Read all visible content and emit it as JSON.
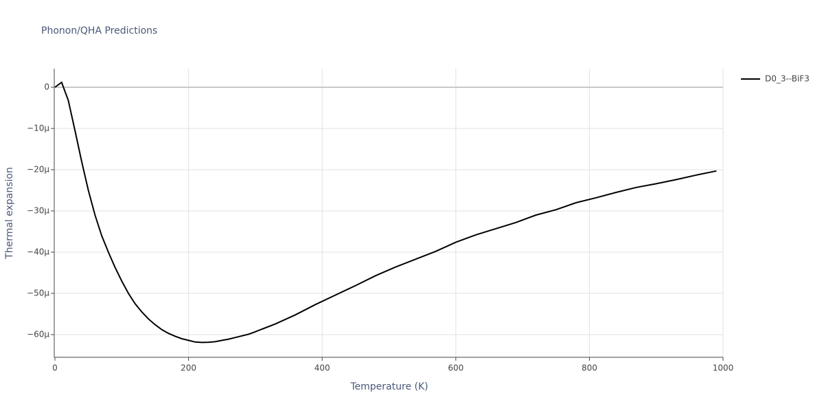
{
  "chart_data": {
    "type": "line",
    "title": "Phonon/QHA Predictions",
    "x_label": "Temperature (K)",
    "y_label": "Thermal expansion",
    "x": [
      0,
      10,
      20,
      30,
      40,
      50,
      60,
      70,
      80,
      90,
      100,
      110,
      120,
      130,
      140,
      150,
      160,
      170,
      180,
      190,
      200,
      210,
      220,
      230,
      240,
      250,
      260,
      270,
      280,
      290,
      300,
      330,
      360,
      390,
      420,
      450,
      480,
      510,
      540,
      570,
      600,
      630,
      660,
      690,
      720,
      750,
      780,
      810,
      840,
      870,
      900,
      930,
      960,
      990
    ],
    "series": [
      {
        "name": "D0_3--BiF3",
        "color": "#000000",
        "values": [
          0,
          1.2e-06,
          -3.2e-06,
          -1.05e-05,
          -1.8e-05,
          -2.5e-05,
          -3.1e-05,
          -3.6e-05,
          -4e-05,
          -4.37e-05,
          -4.7e-05,
          -5e-05,
          -5.25e-05,
          -5.45e-05,
          -5.62e-05,
          -5.76e-05,
          -5.88e-05,
          -5.97e-05,
          -6.04e-05,
          -6.1e-05,
          -6.14e-05,
          -6.18e-05,
          -6.19e-05,
          -6.185e-05,
          -6.17e-05,
          -6.14e-05,
          -6.11e-05,
          -6.07e-05,
          -6.03e-05,
          -5.99e-05,
          -5.93e-05,
          -5.74e-05,
          -5.52e-05,
          -5.27e-05,
          -5.04e-05,
          -4.81e-05,
          -4.57e-05,
          -4.36e-05,
          -4.17e-05,
          -3.98e-05,
          -3.76e-05,
          -3.58e-05,
          -3.43e-05,
          -3.28e-05,
          -3.1e-05,
          -2.97e-05,
          -2.8e-05,
          -2.68e-05,
          -2.55e-05,
          -2.43e-05,
          -2.34e-05,
          -2.24e-05,
          -2.13e-05,
          -2.03e-05
        ]
      }
    ],
    "xlim": [
      0,
      1000
    ],
    "xticks": [
      0,
      200,
      400,
      600,
      800,
      1000
    ],
    "ylim": [
      -6.55e-05,
      4.5e-06
    ],
    "yticks": [
      0,
      {
        "value": -1e-05,
        "label": "−10µ"
      },
      {
        "value": -2e-05,
        "label": "−20µ"
      },
      {
        "value": -3e-05,
        "label": "−30µ"
      },
      {
        "value": -4e-05,
        "label": "−40µ"
      },
      {
        "value": -5e-05,
        "label": "−50µ"
      },
      {
        "value": -6e-05,
        "label": "−60µ"
      }
    ],
    "grid": true,
    "legend": "right"
  }
}
